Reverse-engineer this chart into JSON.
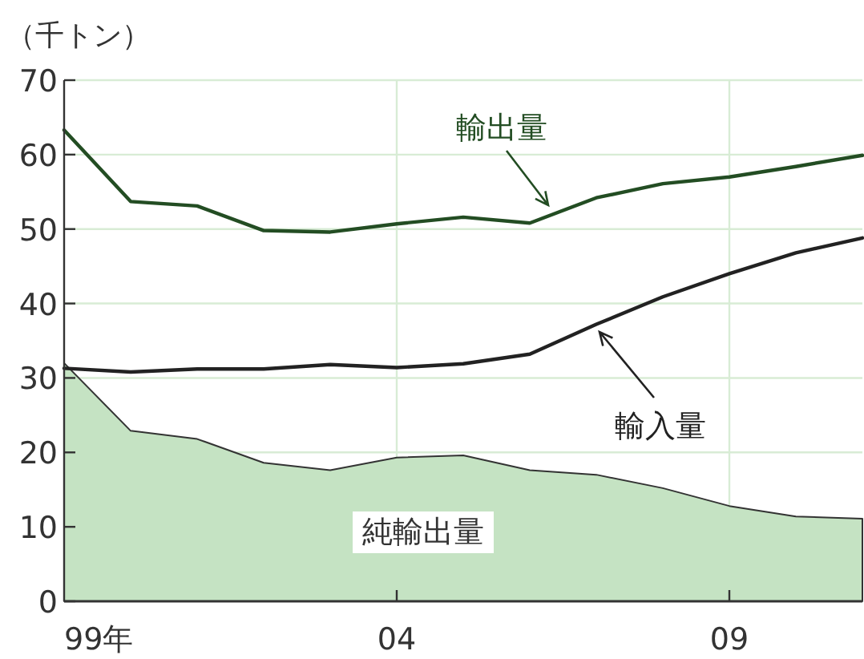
{
  "chart_data": {
    "type": "line",
    "ylabel": "（千トン）",
    "categories": [
      "99年",
      null,
      null,
      null,
      null,
      "04",
      null,
      null,
      null,
      null,
      "09",
      null,
      null
    ],
    "ylim": [
      0,
      70
    ],
    "yticks": [
      0,
      10,
      20,
      30,
      40,
      50,
      60,
      70
    ],
    "grid": true,
    "series": [
      {
        "name": "純輸出量",
        "type": "area",
        "color": "#c5e3c3",
        "values": [
          32.0,
          22.9,
          21.8,
          18.6,
          17.6,
          19.3,
          19.6,
          17.6,
          17.0,
          15.2,
          12.8,
          11.4,
          11.1
        ]
      },
      {
        "name": "輸出量",
        "color": "#234d23",
        "values": [
          63.3,
          53.7,
          53.1,
          49.8,
          49.6,
          50.7,
          51.6,
          50.8,
          54.2,
          56.1,
          57.0,
          58.4,
          59.9
        ]
      },
      {
        "name": "輸入量",
        "color": "#222222",
        "values": [
          31.3,
          30.8,
          31.2,
          31.2,
          31.8,
          31.4,
          31.9,
          33.2,
          37.2,
          40.9,
          44.0,
          46.8,
          48.8
        ]
      }
    ]
  }
}
